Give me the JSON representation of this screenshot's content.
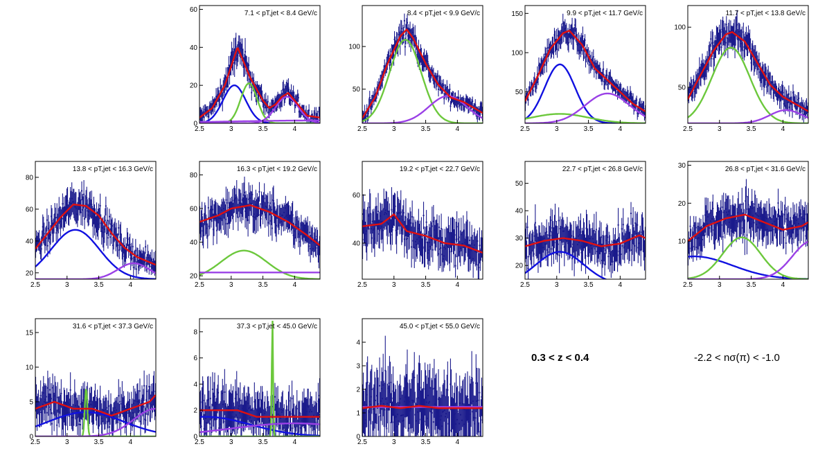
{
  "figure": {
    "annotations": {
      "z_range": "0.3 < z < 0.4",
      "nsigma_range": "-2.2 < nσ(π) < -1.0"
    }
  },
  "colors": {
    "data": "#1a1a8c",
    "total": "#e01010",
    "blue": "#1010e0",
    "green": "#6cc83c",
    "purple": "#9a40e6"
  },
  "chart_data": [
    {
      "type": "line",
      "title": "7.1 < pT,jet < 8.4 GeV/c",
      "xlim": [
        2.5,
        4.4
      ],
      "ylim": [
        0,
        62
      ],
      "xticks": [
        2.5,
        3,
        3.5,
        4
      ],
      "yticks": [
        0,
        20,
        40,
        60
      ],
      "data_peak": {
        "x": [
          2.5,
          2.7,
          2.9,
          3.0,
          3.1,
          3.2,
          3.3,
          3.4,
          3.5,
          3.6,
          3.7,
          3.8,
          3.9,
          4.0,
          4.1,
          4.2,
          4.4
        ],
        "y": [
          3,
          8,
          20,
          30,
          40,
          32,
          24,
          18,
          12,
          8,
          10,
          14,
          16,
          12,
          8,
          4,
          3
        ]
      },
      "components": [
        {
          "color": "blue",
          "a": 20,
          "mu": 3.05,
          "sig": 0.18,
          "c": 0
        },
        {
          "color": "green",
          "a": 21,
          "mu": 3.28,
          "sig": 0.13,
          "c": 0
        },
        {
          "color": "purple",
          "a": 14,
          "mu": 3.88,
          "sig": 0.18,
          "c": 0
        },
        {
          "color": "purple",
          "a": 1.5,
          "mu": 4.4,
          "sig": 1.5,
          "c": 0
        }
      ]
    },
    {
      "type": "line",
      "title": "8.4 < pT,jet < 9.9 GeV/c",
      "xlim": [
        2.5,
        4.4
      ],
      "ylim": [
        10,
        148
      ],
      "xticks": [
        2.5,
        3,
        3.5,
        4
      ],
      "yticks": [
        50,
        100
      ],
      "data_peak": {
        "x": [
          2.5,
          2.7,
          2.9,
          3.1,
          3.2,
          3.3,
          3.5,
          3.7,
          3.9,
          4.1,
          4.4
        ],
        "y": [
          16,
          40,
          80,
          112,
          120,
          110,
          80,
          55,
          40,
          35,
          22
        ]
      },
      "components": [
        {
          "color": "green",
          "a": 98,
          "mu": 3.18,
          "sig": 0.25,
          "c": 10
        },
        {
          "color": "purple",
          "a": 32,
          "mu": 3.85,
          "sig": 0.3,
          "c": 10
        }
      ]
    },
    {
      "type": "line",
      "title": "9.9 < pT,jet < 11.7 GeV/c",
      "xlim": [
        2.5,
        4.4
      ],
      "ylim": [
        10,
        160
      ],
      "xticks": [
        2.5,
        3,
        3.5,
        4
      ],
      "yticks": [
        50,
        100,
        150
      ],
      "data_peak": {
        "x": [
          2.5,
          2.7,
          2.9,
          3.1,
          3.2,
          3.4,
          3.6,
          3.8,
          4.0,
          4.2,
          4.4
        ],
        "y": [
          38,
          70,
          105,
          125,
          128,
          110,
          80,
          65,
          50,
          35,
          25
        ]
      },
      "components": [
        {
          "color": "blue",
          "a": 75,
          "mu": 3.05,
          "sig": 0.24,
          "c": 10
        },
        {
          "color": "green",
          "a": 12,
          "mu": 3.05,
          "sig": 0.45,
          "c": 10
        },
        {
          "color": "purple",
          "a": 38,
          "mu": 3.8,
          "sig": 0.35,
          "c": 10
        }
      ]
    },
    {
      "type": "line",
      "title": "11.7 < pT,jet < 13.8 GeV/c",
      "xlim": [
        2.5,
        4.4
      ],
      "ylim": [
        20,
        118
      ],
      "xticks": [
        2.5,
        3,
        3.5,
        4
      ],
      "yticks": [
        50,
        100
      ],
      "data_peak": {
        "x": [
          2.5,
          2.7,
          2.9,
          3.1,
          3.2,
          3.4,
          3.6,
          3.8,
          4.0,
          4.2,
          4.4
        ],
        "y": [
          40,
          60,
          80,
          94,
          96,
          88,
          70,
          52,
          42,
          36,
          30
        ]
      },
      "components": [
        {
          "color": "green",
          "a": 63,
          "mu": 3.18,
          "sig": 0.3,
          "c": 20
        },
        {
          "color": "purple",
          "a": 11,
          "mu": 4.05,
          "sig": 0.26,
          "c": 20
        }
      ]
    },
    {
      "type": "line",
      "title": "13.8 < pT,jet < 16.3 GeV/c",
      "xlim": [
        2.5,
        4.4
      ],
      "ylim": [
        16,
        90
      ],
      "xticks": [
        2.5,
        3,
        3.5,
        4
      ],
      "yticks": [
        20,
        40,
        60,
        80
      ],
      "data_peak": {
        "x": [
          2.5,
          2.7,
          2.9,
          3.1,
          3.3,
          3.5,
          3.7,
          3.9,
          4.1,
          4.4
        ],
        "y": [
          35,
          45,
          55,
          63,
          62,
          56,
          45,
          36,
          30,
          25
        ]
      },
      "components": [
        {
          "color": "blue",
          "a": 31,
          "mu": 3.13,
          "sig": 0.38,
          "c": 16
        },
        {
          "color": "purple",
          "a": 10,
          "mu": 4.05,
          "sig": 0.25,
          "c": 16
        }
      ]
    },
    {
      "type": "line",
      "title": "16.3 < pT,jet < 19.2 GeV/c",
      "xlim": [
        2.5,
        4.4
      ],
      "ylim": [
        18,
        88
      ],
      "xticks": [
        2.5,
        3,
        3.5,
        4
      ],
      "yticks": [
        20,
        40,
        60,
        80
      ],
      "data_peak": {
        "x": [
          2.5,
          2.8,
          3.0,
          3.3,
          3.6,
          3.9,
          4.2,
          4.4
        ],
        "y": [
          52,
          56,
          60,
          62,
          58,
          52,
          44,
          38
        ]
      },
      "components": [
        {
          "color": "green",
          "a": 17,
          "mu": 3.2,
          "sig": 0.36,
          "c": 18
        },
        {
          "color": "purple",
          "a": 4,
          "mu": 3.5,
          "sig": 50,
          "c": 18
        }
      ]
    },
    {
      "type": "line",
      "title": "19.2 < pT,jet < 22.7 GeV/c",
      "xlim": [
        2.5,
        4.4
      ],
      "ylim": [
        25,
        74
      ],
      "xticks": [
        2.5,
        3,
        3.5,
        4
      ],
      "yticks": [
        40,
        60
      ],
      "data_peak": {
        "x": [
          2.5,
          2.8,
          3.0,
          3.2,
          3.5,
          3.8,
          4.1,
          4.4
        ],
        "y": [
          47,
          48,
          52,
          45,
          43,
          40,
          39,
          36
        ]
      },
      "components": []
    },
    {
      "type": "line",
      "title": "22.7 < pT,jet < 26.8 GeV/c",
      "xlim": [
        2.5,
        4.4
      ],
      "ylim": [
        15,
        58
      ],
      "xticks": [
        2.5,
        3,
        3.5,
        4
      ],
      "yticks": [
        20,
        30,
        40,
        50
      ],
      "data_peak": {
        "x": [
          2.5,
          2.8,
          3.1,
          3.4,
          3.7,
          4.0,
          4.3,
          4.4
        ],
        "y": [
          27,
          29,
          30,
          29,
          27,
          28,
          31,
          30
        ]
      },
      "components": [
        {
          "color": "blue",
          "a": 12,
          "mu": 3.05,
          "sig": 0.38,
          "c": 13
        },
        {
          "color": "green",
          "a": 2,
          "mu": 4.6,
          "sig": 0.2,
          "c": 13
        }
      ]
    },
    {
      "type": "line",
      "title": "26.8 < pT,jet < 31.6 GeV/c",
      "xlim": [
        2.5,
        4.4
      ],
      "ylim": [
        0,
        31
      ],
      "xticks": [
        2.5,
        3,
        3.5,
        4
      ],
      "yticks": [
        10,
        20,
        30
      ],
      "data_peak": {
        "x": [
          2.5,
          2.8,
          3.1,
          3.4,
          3.7,
          4.0,
          4.3,
          4.4
        ],
        "y": [
          10,
          14,
          16,
          17,
          15,
          13,
          14,
          15
        ]
      },
      "components": [
        {
          "color": "blue",
          "a": 6,
          "mu": 2.6,
          "sig": 0.6,
          "c": 0
        },
        {
          "color": "green",
          "a": 11,
          "mu": 3.35,
          "sig": 0.3,
          "c": 0
        },
        {
          "color": "purple",
          "a": 10,
          "mu": 4.45,
          "sig": 0.3,
          "c": 0
        }
      ]
    },
    {
      "type": "line",
      "title": "31.6 < pT,jet < 37.3 GeV/c",
      "xlim": [
        2.5,
        4.4
      ],
      "ylim": [
        0,
        17
      ],
      "xticks": [
        2.5,
        3,
        3.5,
        4
      ],
      "yticks": [
        0,
        5,
        10,
        15
      ],
      "data_peak": {
        "x": [
          2.5,
          2.8,
          3.1,
          3.4,
          3.7,
          4.0,
          4.3,
          4.4
        ],
        "y": [
          4,
          5,
          4,
          4,
          3,
          4,
          5,
          6
        ]
      },
      "components": [
        {
          "color": "blue",
          "a": 3.5,
          "mu": 3.3,
          "sig": 0.6,
          "c": 0
        },
        {
          "color": "green",
          "a": 7,
          "mu": 3.3,
          "sig": 0.02,
          "c": 0
        },
        {
          "color": "purple",
          "a": 4,
          "mu": 4.4,
          "sig": 0.35,
          "c": 0
        }
      ]
    },
    {
      "type": "line",
      "title": "37.3 < pT,jet < 45.0 GeV/c",
      "xlim": [
        2.5,
        4.4
      ],
      "ylim": [
        0,
        9
      ],
      "xticks": [
        2.5,
        3,
        3.5,
        4
      ],
      "yticks": [
        0,
        2,
        4,
        6,
        8
      ],
      "data_peak": {
        "x": [
          2.5,
          2.8,
          3.1,
          3.4,
          3.7,
          4.0,
          4.3,
          4.4
        ],
        "y": [
          2,
          2,
          2,
          1.5,
          1.5,
          1.5,
          1.5,
          1.5
        ]
      },
      "components": [
        {
          "color": "blue",
          "a": 1.5,
          "mu": 2.6,
          "sig": 0.7,
          "c": 0
        },
        {
          "color": "green",
          "a": 9,
          "mu": 3.65,
          "sig": 0.01,
          "c": 0
        },
        {
          "color": "purple",
          "a": 1,
          "mu": 4,
          "sig": 1,
          "c": 0
        }
      ]
    },
    {
      "type": "line",
      "title": "45.0 < pT,jet < 55.0 GeV/c",
      "xlim": [
        2.5,
        4.4
      ],
      "ylim": [
        0,
        5
      ],
      "xticks": [
        2.5,
        3,
        3.5,
        4
      ],
      "yticks": [
        0,
        1,
        2,
        3,
        4
      ],
      "data_peak": {
        "x": [
          2.5,
          2.8,
          3.1,
          3.4,
          3.7,
          4.0,
          4.3,
          4.4
        ],
        "y": [
          1.2,
          1.3,
          1.2,
          1.3,
          1.2,
          1.2,
          1.2,
          1.2
        ]
      },
      "components": [
        {
          "color": "purple",
          "a": 1.25,
          "mu": 3.4,
          "sig": 30,
          "c": 0
        }
      ]
    }
  ]
}
